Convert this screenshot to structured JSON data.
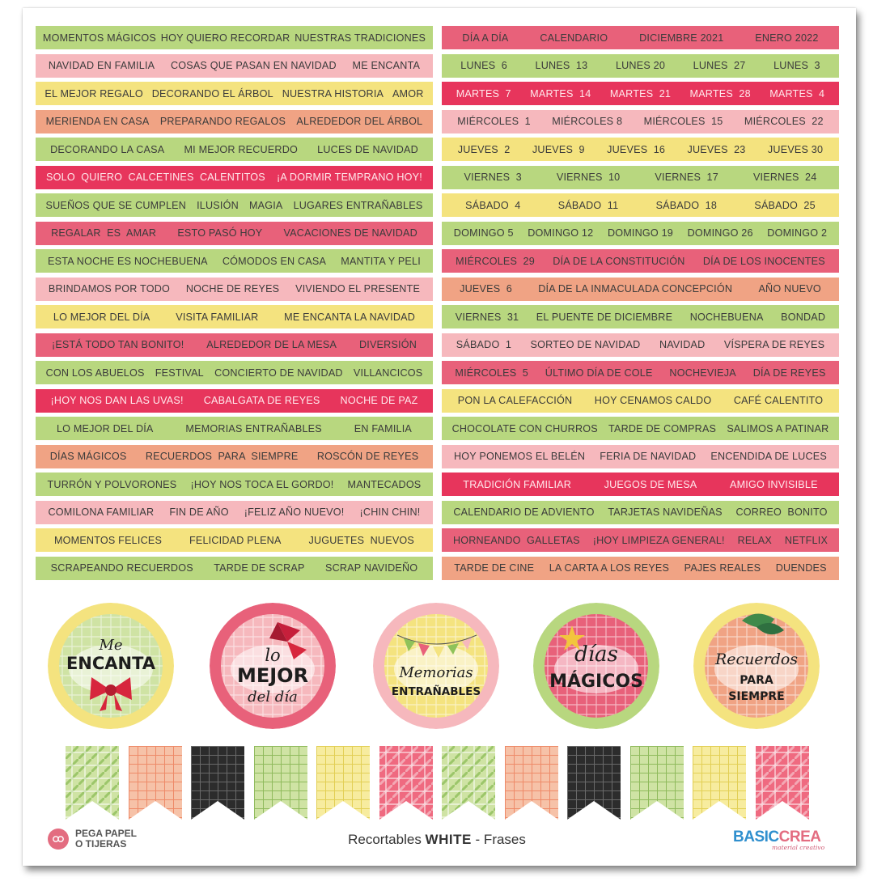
{
  "colors": {
    "green": "#b8d77f",
    "pink_light": "#f6b8bd",
    "yellow": "#f4e37f",
    "salmon": "#f0a384",
    "red": "#e7355c",
    "rose": "#e8617a",
    "text_dark": "#3b3b3b"
  },
  "left_strips": [
    {
      "color": "green",
      "items": [
        "MOMENTOS MÁGICOS",
        "HOY QUIERO RECORDAR",
        "NUESTRAS TRADICIONES"
      ]
    },
    {
      "color": "pink_light",
      "items": [
        "NAVIDAD EN FAMILIA",
        "COSAS QUE PASAN EN NAVIDAD",
        "ME ENCANTA"
      ]
    },
    {
      "color": "yellow",
      "items": [
        "EL MEJOR REGALO",
        "DECORANDO EL ÁRBOL",
        "NUESTRA HISTORIA",
        "AMOR"
      ]
    },
    {
      "color": "salmon",
      "items": [
        "MERIENDA EN CASA",
        "PREPARANDO REGALOS",
        "ALREDEDOR DEL ÁRBOL"
      ]
    },
    {
      "color": "green",
      "items": [
        "DECORANDO LA CASA",
        "MI MEJOR RECUERDO",
        "LUCES DE NAVIDAD"
      ]
    },
    {
      "color": "red",
      "items": [
        "SOLO  QUIERO  CALCETINES  CALENTITOS",
        "¡A DORMIR TEMPRANO HOY!"
      ]
    },
    {
      "color": "green",
      "items": [
        "SUEÑOS QUE SE CUMPLEN",
        "ILUSIÓN",
        "MAGIA",
        "LUGARES ENTRAÑABLES"
      ]
    },
    {
      "color": "rose",
      "items": [
        "REGALAR  ES  AMAR",
        "ESTO PASÓ HOY",
        "VACACIONES DE NAVIDAD"
      ]
    },
    {
      "color": "green",
      "items": [
        "ESTA NOCHE ES NOCHEBUENA",
        "CÓMODOS EN CASA",
        "MANTITA Y PELI"
      ]
    },
    {
      "color": "pink_light",
      "items": [
        "BRINDAMOS POR TODO",
        "NOCHE DE REYES",
        "VIVIENDO EL PRESENTE"
      ]
    },
    {
      "color": "yellow",
      "items": [
        "LO MEJOR DEL DÍA",
        "VISITA FAMILIAR",
        "ME ENCANTA LA NAVIDAD"
      ]
    },
    {
      "color": "rose",
      "items": [
        "¡ESTÁ TODO TAN BONITO!",
        "ALREDEDOR DE LA MESA",
        "DIVERSIÓN"
      ]
    },
    {
      "color": "green",
      "items": [
        "CON LOS ABUELOS",
        "FESTIVAL",
        "CONCIERTO DE NAVIDAD",
        "VILLANCICOS"
      ]
    },
    {
      "color": "red",
      "items": [
        "¡HOY NOS DAN LAS UVAS!",
        "CABALGATA DE REYES",
        "NOCHE DE PAZ"
      ]
    },
    {
      "color": "green",
      "items": [
        "LO MEJOR DEL DÍA",
        "MEMORIAS ENTRAÑABLES",
        "EN FAMILIA"
      ]
    },
    {
      "color": "salmon",
      "items": [
        "DÍAS MÁGICOS",
        "RECUERDOS  PARA  SIEMPRE",
        "ROSCÓN DE REYES"
      ]
    },
    {
      "color": "green",
      "items": [
        "TURRÓN Y POLVORONES",
        "¡HOY NOS TOCA EL GORDO!",
        "MANTECADOS"
      ]
    },
    {
      "color": "pink_light",
      "items": [
        "COMILONA FAMILIAR",
        "FIN DE AÑO",
        "¡FELIZ AÑO NUEVO!",
        "¡CHIN CHIN!"
      ]
    },
    {
      "color": "yellow",
      "items": [
        "MOMENTOS FELICES",
        "FELICIDAD PLENA",
        "JUGUETES  NUEVOS"
      ]
    },
    {
      "color": "green",
      "items": [
        "SCRAPEANDO RECUERDOS",
        "TARDE DE SCRAP",
        "SCRAP NAVIDEÑO"
      ]
    }
  ],
  "right_strips": [
    {
      "color": "rose",
      "items": [
        "DÍA A DÍA",
        "CALENDARIO",
        "DICIEMBRE 2021",
        "ENERO 2022"
      ]
    },
    {
      "color": "green",
      "items": [
        "LUNES  6",
        "LUNES  13",
        "LUNES 20",
        "LUNES  27",
        "LUNES  3"
      ]
    },
    {
      "color": "red",
      "items": [
        "MARTES  7",
        "MARTES  14",
        "MARTES  21",
        "MARTES  28",
        "MARTES  4"
      ]
    },
    {
      "color": "pink_light",
      "items": [
        "MIÉRCOLES  1",
        "MIÉRCOLES 8",
        "MIÉRCOLES  15",
        "MIÉRCOLES  22"
      ]
    },
    {
      "color": "yellow",
      "items": [
        "JUEVES  2",
        "JUEVES  9",
        "JUEVES  16",
        "JUEVES  23",
        "JUEVES 30"
      ]
    },
    {
      "color": "green",
      "items": [
        "VIERNES  3",
        "VIERNES  10",
        "VIERNES  17",
        "VIERNES  24"
      ]
    },
    {
      "color": "yellow",
      "items": [
        "SÁBADO  4",
        "SÁBADO  11",
        "SÁBADO  18",
        "SÁBADO  25"
      ]
    },
    {
      "color": "green",
      "items": [
        "DOMINGO 5",
        "DOMINGO 12",
        "DOMINGO 19",
        "DOMINGO 26",
        "DOMINGO 2"
      ]
    },
    {
      "color": "rose",
      "items": [
        "MIÉRCOLES  29",
        "DÍA DE LA CONSTITUCIÓN",
        "DÍA DE LOS INOCENTES"
      ]
    },
    {
      "color": "salmon",
      "items": [
        "JUEVES  6",
        "DÍA DE LA INMACULADA CONCEPCIÓN",
        "AÑO NUEVO"
      ]
    },
    {
      "color": "green",
      "items": [
        "VIERNES  31",
        "EL PUENTE DE DICIEMBRE",
        "NOCHEBUENA",
        "BONDAD"
      ]
    },
    {
      "color": "pink_light",
      "items": [
        "SÁBADO  1",
        "SORTEO DE NAVIDAD",
        "NAVIDAD",
        "VÍSPERA DE REYES"
      ]
    },
    {
      "color": "rose",
      "items": [
        "MIÉRCOLES  5",
        "ÚLTIMO DÍA DE COLE",
        "NOCHEVIEJA",
        "DÍA DE REYES"
      ]
    },
    {
      "color": "yellow",
      "items": [
        "PON LA CALEFACCIÓN",
        "HOY CENAMOS CALDO",
        "CAFÉ CALENTITO"
      ]
    },
    {
      "color": "green",
      "items": [
        "CHOCOLATE CON CHURROS",
        "TARDE DE COMPRAS",
        "SALIMOS A PATINAR"
      ]
    },
    {
      "color": "pink_light",
      "items": [
        "HOY PONEMOS EL BELÉN",
        "FERIA DE NAVIDAD",
        "ENCENDIDA DE LUCES"
      ]
    },
    {
      "color": "red",
      "items": [
        "TRADICIÓN FAMILIAR",
        "JUEGOS DE MESA",
        "AMIGO INVISIBLE"
      ]
    },
    {
      "color": "green",
      "items": [
        "CALENDARIO DE ADVIENTO",
        "TARJETAS NAVIDEÑAS",
        "CORREO  BONITO"
      ]
    },
    {
      "color": "rose",
      "items": [
        "HORNEANDO  GALLETAS",
        "¡HOY LIMPIEZA GENERAL!",
        "RELAX",
        "NETFLIX"
      ]
    },
    {
      "color": "salmon",
      "items": [
        "TARDE DE CINE",
        "LA CARTA A LOS REYES",
        "PAJES REALES",
        "DUENDES"
      ]
    }
  ],
  "badges": [
    {
      "script": "Me",
      "bold": "ENCANTA",
      "bold2": "",
      "script2": "",
      "ring": "#f4e37f",
      "fill": "#cfe3a4"
    },
    {
      "script": "lo",
      "bold": "MEJOR",
      "bold2": "",
      "script2": "del día",
      "ring": "#e8617a",
      "fill": "#f6b8bd"
    },
    {
      "script": "Memorias",
      "bold": "ENTRAÑABLES",
      "bold2": "",
      "script2": "",
      "ring": "#f6b8bd",
      "fill": "#f4e37f"
    },
    {
      "script": "días",
      "bold": "MÁGICOS",
      "bold2": "",
      "script2": "",
      "ring": "#b8d77f",
      "fill": "#e8617a"
    },
    {
      "script": "Recuerdos",
      "bold": "PARA",
      "bold2": "SIEMPRE",
      "script2": "",
      "ring": "#f4e37f",
      "fill": "#f0a384"
    }
  ],
  "flags": [
    "green-plaid",
    "salmon-grid",
    "black-grid",
    "green-grid",
    "yellow-grid",
    "red-plaid",
    "green-plaid",
    "salmon-grid",
    "black-grid",
    "green-grid",
    "yellow-grid",
    "red-plaid"
  ],
  "footer": {
    "left_line1": "PEGA PAPEL",
    "left_line2": "O TIJERAS",
    "title_pre": "Recortables ",
    "title_bold": "WHITE",
    "title_post": " - Frases",
    "brand_a": "BASIC",
    "brand_b": "CREA",
    "brand_sub": "material creativo"
  }
}
